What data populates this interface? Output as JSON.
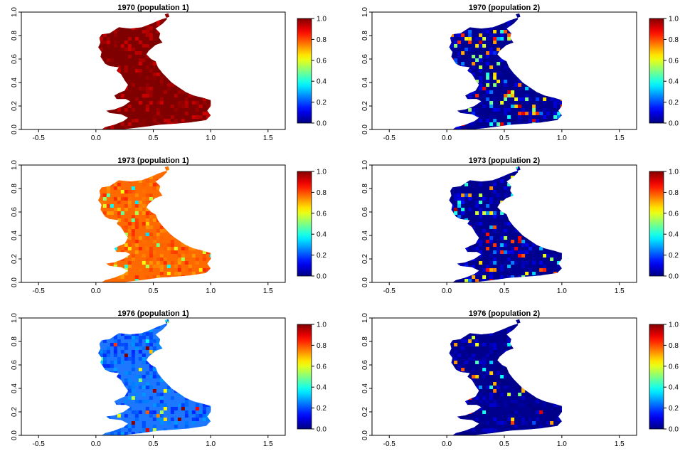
{
  "figure": {
    "panels": [
      {
        "title": "1970 (population 1)",
        "level": 0.98,
        "hotspots": 0.0,
        "base_color": "#7f0000"
      },
      {
        "title": "1970 (population 2)",
        "level": 0.05,
        "hotspots": 0.9,
        "base_color": "#00008f"
      },
      {
        "title": "1973 (population 1)",
        "level": 0.78,
        "hotspots": 0.35,
        "base_color": "#ff6a00"
      },
      {
        "title": "1973 (population 2)",
        "level": 0.05,
        "hotspots": 0.7,
        "base_color": "#00008f"
      },
      {
        "title": "1976 (population 1)",
        "level": 0.22,
        "hotspots": 0.25,
        "base_color": "#1e78ff"
      },
      {
        "title": "1976 (population 2)",
        "level": 0.03,
        "hotspots": 0.25,
        "base_color": "#00008f"
      }
    ],
    "x_ticks": [
      "-0.5",
      "0.0",
      "0.5",
      "1.0",
      "1.5"
    ],
    "y_ticks": [
      "0.0",
      "0.2",
      "0.4",
      "0.6",
      "0.8",
      "1.0"
    ],
    "colorbar_ticks": [
      "0.0",
      "0.2",
      "0.4",
      "0.6",
      "0.8",
      "1.0"
    ],
    "xlim": [
      -0.65,
      1.65
    ],
    "ylim": [
      0,
      1
    ],
    "colormap": "jet"
  }
}
